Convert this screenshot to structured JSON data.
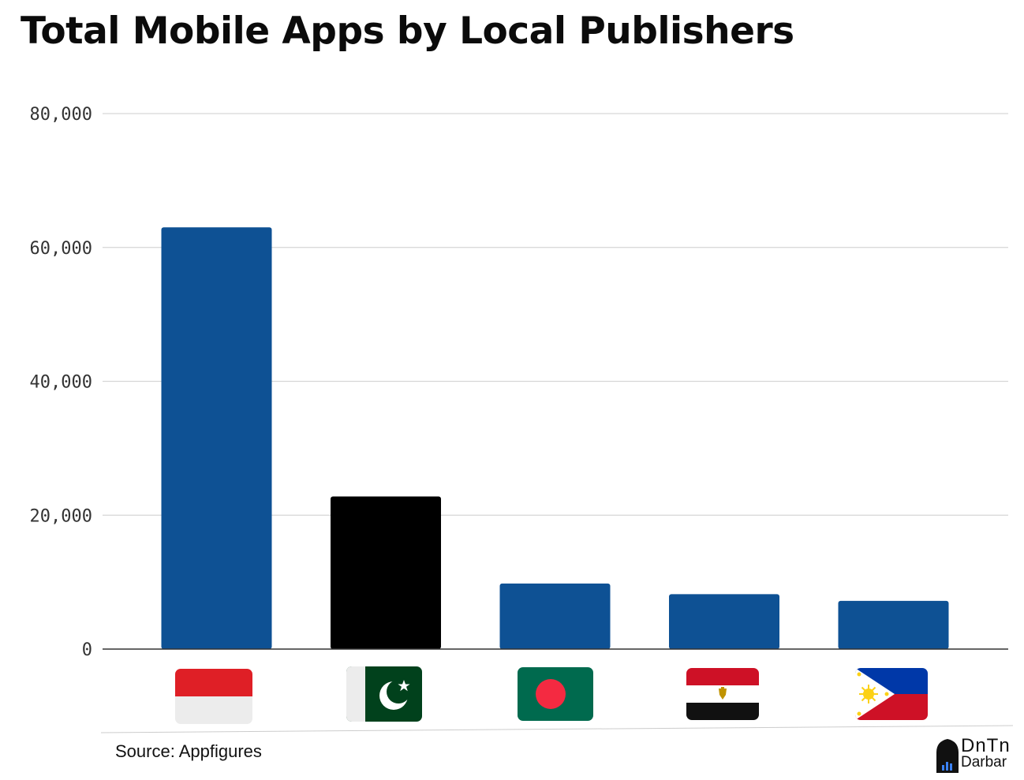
{
  "chart_data": {
    "type": "bar",
    "title": "Total Mobile Apps by Local Publishers",
    "categories": [
      "Indonesia",
      "Pakistan",
      "Bangladesh",
      "Egypt",
      "Philippines"
    ],
    "category_icons": [
      "indonesia-flag-icon",
      "pakistan-flag-icon",
      "bangladesh-flag-icon",
      "egypt-flag-icon",
      "philippines-flag-icon"
    ],
    "values": [
      63000,
      22800,
      9800,
      8200,
      7200
    ],
    "bar_colors": [
      "#0e5194",
      "#000000",
      "#0e5194",
      "#0e5194",
      "#0e5194"
    ],
    "y_ticks": [
      "0",
      "20,000",
      "40,000",
      "60,000",
      "80,000"
    ],
    "ylim": [
      0,
      80000
    ],
    "grid": true,
    "legend": "none"
  },
  "source": "Source: Appfigures",
  "brand": {
    "line1": "DnTn",
    "line2": "Darbar"
  }
}
